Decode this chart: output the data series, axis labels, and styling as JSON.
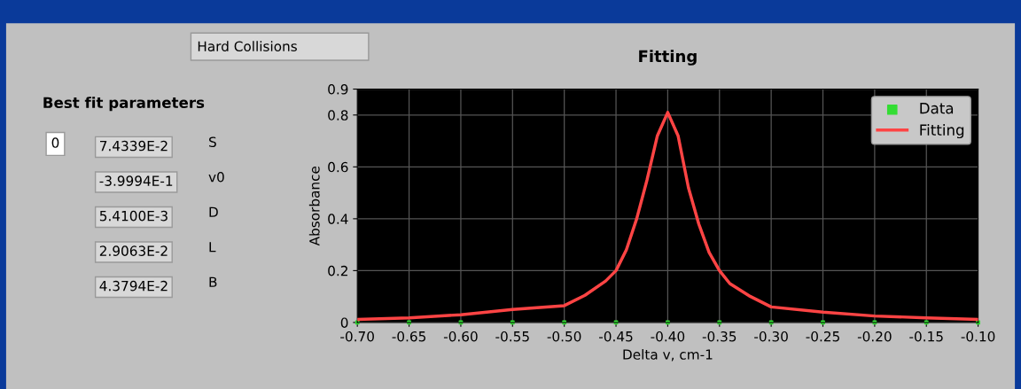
{
  "chart_data": {
    "type": "line",
    "title": "Fitting",
    "xlabel": "Delta v, cm-1",
    "ylabel": "Absorbance",
    "xlim": [
      -0.7,
      -0.1
    ],
    "ylim": [
      0,
      0.9
    ],
    "xticks": [
      {
        "value": -0.7,
        "label": "-0.70"
      },
      {
        "value": -0.65,
        "label": "-0.65"
      },
      {
        "value": -0.6,
        "label": "-0.60"
      },
      {
        "value": -0.55,
        "label": "-0.55"
      },
      {
        "value": -0.5,
        "label": "-0.50"
      },
      {
        "value": -0.45,
        "label": "-0.45"
      },
      {
        "value": -0.4,
        "label": "-0.40"
      },
      {
        "value": -0.35,
        "label": "-0.35"
      },
      {
        "value": -0.3,
        "label": "-0.30"
      },
      {
        "value": -0.25,
        "label": "-0.25"
      },
      {
        "value": -0.2,
        "label": "-0.20"
      },
      {
        "value": -0.15,
        "label": "-0.15"
      },
      {
        "value": -0.1,
        "label": "-0.10"
      }
    ],
    "yticks": [
      0,
      0.2,
      0.4,
      0.6,
      0.8,
      0.9
    ],
    "grid": true,
    "legend": "top right",
    "series": [
      {
        "name": "Data",
        "type": "scatter",
        "color": "#33dd33",
        "marker": "square",
        "x": [
          -0.7,
          -0.65,
          -0.6,
          -0.55,
          -0.5,
          -0.45,
          -0.4,
          -0.35,
          -0.3,
          -0.25,
          -0.2,
          -0.15,
          -0.1
        ],
        "values": [
          0,
          0,
          0,
          0,
          0,
          0,
          0,
          0,
          0,
          0,
          0,
          0,
          0
        ]
      },
      {
        "name": "Fitting",
        "color": "#ff4444",
        "x": [
          -0.7,
          -0.65,
          -0.6,
          -0.55,
          -0.5,
          -0.48,
          -0.46,
          -0.45,
          -0.44,
          -0.43,
          -0.42,
          -0.41,
          -0.4,
          -0.39,
          -0.38,
          -0.37,
          -0.36,
          -0.35,
          -0.34,
          -0.32,
          -0.3,
          -0.25,
          -0.2,
          -0.15,
          -0.1
        ],
        "values": [
          0.012,
          0.018,
          0.03,
          0.05,
          0.065,
          0.105,
          0.16,
          0.2,
          0.28,
          0.4,
          0.55,
          0.72,
          0.81,
          0.72,
          0.52,
          0.38,
          0.27,
          0.2,
          0.15,
          0.1,
          0.06,
          0.04,
          0.025,
          0.018,
          0.012
        ]
      }
    ],
    "annotations": [
      "Hard Collisions",
      "Best fit parameters",
      "0",
      "7.4339E-2",
      "S",
      "-3.9994E-1",
      "v0",
      "5.4100E-3",
      "D",
      "2.9063E-2",
      "L",
      "4.3794E-2",
      "B"
    ]
  }
}
